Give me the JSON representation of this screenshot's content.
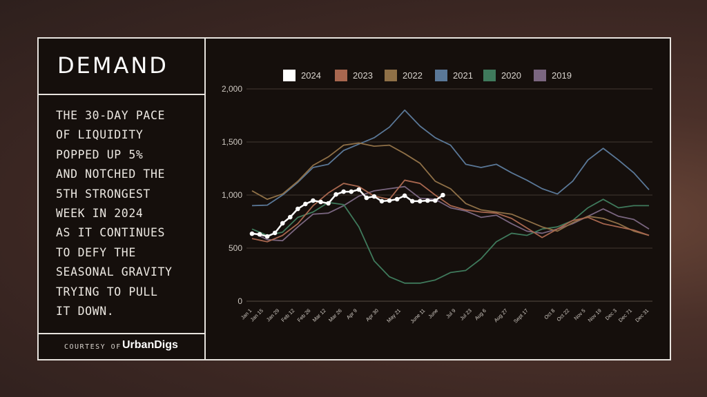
{
  "panel": {
    "title": "DEMAND",
    "body_lines": [
      "THE 30-DAY PACE",
      "OF LIQUIDITY",
      "POPPED UP 5%",
      "AND NOTCHED THE",
      "5TH STRONGEST",
      "WEEK IN 2024",
      "AS IT CONTINUES",
      "TO DEFY THE",
      "SEASONAL GRAVITY",
      "TRYING TO PULL",
      "IT DOWN."
    ],
    "courtesy": "COURTESY OF",
    "brand": "UrbanDigs"
  },
  "chart_data": {
    "type": "line",
    "title": "",
    "xlabel": "",
    "ylabel": "",
    "ylim": [
      0,
      2000
    ],
    "yticks": [
      0,
      500,
      1000,
      1500,
      2000
    ],
    "ytick_labels": [
      "0",
      "500",
      "1,000",
      "1,500",
      "2,000"
    ],
    "xlim_weeks": [
      0,
      52
    ],
    "x_tick_labels": [
      {
        "label": "Jan 1",
        "week": 0
      },
      {
        "label": "Jan 15",
        "week": 1.5
      },
      {
        "label": "Jan 29",
        "week": 3.6
      },
      {
        "label": "Feb 12",
        "week": 5.6
      },
      {
        "label": "Feb 26",
        "week": 7.7
      },
      {
        "label": "Mar 12",
        "week": 9.7
      },
      {
        "label": "Mar 26",
        "week": 11.8
      },
      {
        "label": "Apr 9",
        "week": 13.8
      },
      {
        "label": "Apr 30",
        "week": 16.6
      },
      {
        "label": "May 21",
        "week": 19.5
      },
      {
        "label": "June 11",
        "week": 22.7
      },
      {
        "label": "June",
        "week": 24.4
      },
      {
        "label": "Jul 9",
        "week": 26.7
      },
      {
        "label": "Jul 23",
        "week": 28.8
      },
      {
        "label": "Aug 6",
        "week": 30.7
      },
      {
        "label": "Aug 27",
        "week": 33.5
      },
      {
        "label": "Sept 17",
        "week": 36.2
      },
      {
        "label": "Oct 8",
        "week": 39.7
      },
      {
        "label": "Oct 22",
        "week": 41.6
      },
      {
        "label": "Nov 5",
        "week": 43.7
      },
      {
        "label": "Nov 19",
        "week": 45.8
      },
      {
        "label": "Dec 3",
        "week": 47.8
      },
      {
        "label": "Dec 71",
        "week": 49.8
      },
      {
        "label": "Dec 31",
        "week": 52
      }
    ],
    "grid": true,
    "legend_position": "top",
    "series": [
      {
        "name": "2024",
        "color": "#ffffff",
        "markers": true,
        "step_weeks": 1,
        "values": [
          636,
          630,
          610,
          643,
          734,
          792,
          870,
          916,
          948,
          935,
          922,
          1006,
          1032,
          1032,
          1052,
          974,
          987,
          942,
          948,
          961,
          994,
          942,
          942,
          948,
          948,
          1000
        ]
      },
      {
        "name": "2023",
        "color": "#a8674f",
        "step_weeks": 2,
        "values": [
          590,
          560,
          620,
          730,
          900,
          1020,
          1110,
          1080,
          990,
          960,
          1140,
          1110,
          1000,
          900,
          860,
          840,
          830,
          780,
          690,
          600,
          680,
          760,
          790,
          730,
          700,
          670,
          620
        ]
      },
      {
        "name": "2022",
        "color": "#8f7047",
        "step_weeks": 2,
        "values": [
          1040,
          960,
          1010,
          1130,
          1280,
          1360,
          1470,
          1490,
          1460,
          1470,
          1390,
          1300,
          1130,
          1060,
          920,
          860,
          840,
          820,
          760,
          700,
          660,
          740,
          800,
          780,
          730,
          660,
          620
        ]
      },
      {
        "name": "2021",
        "color": "#5a7898",
        "step_weeks": 2,
        "values": [
          900,
          905,
          1000,
          1120,
          1260,
          1290,
          1420,
          1480,
          1540,
          1640,
          1800,
          1650,
          1540,
          1470,
          1290,
          1260,
          1290,
          1210,
          1140,
          1060,
          1010,
          1130,
          1330,
          1440,
          1330,
          1210,
          1050
        ]
      },
      {
        "name": "2020",
        "color": "#3f7a5c",
        "step_weeks": 2,
        "values": [
          680,
          620,
          650,
          790,
          840,
          930,
          910,
          700,
          380,
          230,
          170,
          170,
          200,
          270,
          290,
          400,
          560,
          640,
          620,
          680,
          700,
          760,
          880,
          960,
          880,
          900,
          900
        ]
      },
      {
        "name": "2019",
        "color": "#7a6680",
        "step_weeks": 2,
        "values": [
          650,
          580,
          570,
          700,
          820,
          830,
          900,
          990,
          1040,
          1060,
          1080,
          970,
          960,
          880,
          850,
          790,
          810,
          730,
          660,
          640,
          680,
          730,
          800,
          870,
          800,
          770,
          680
        ]
      }
    ]
  }
}
